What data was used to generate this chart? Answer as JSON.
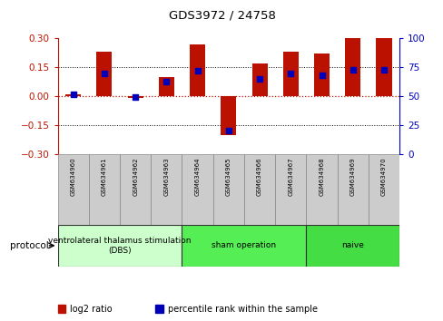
{
  "title": "GDS3972 / 24758",
  "samples": [
    "GSM634960",
    "GSM634961",
    "GSM634962",
    "GSM634963",
    "GSM634964",
    "GSM634965",
    "GSM634966",
    "GSM634967",
    "GSM634968",
    "GSM634969",
    "GSM634970"
  ],
  "log2_ratio": [
    0.01,
    0.23,
    -0.01,
    0.1,
    0.27,
    -0.2,
    0.17,
    0.23,
    0.22,
    0.3,
    0.3
  ],
  "percentile_rank": [
    52,
    70,
    49,
    63,
    72,
    20,
    65,
    70,
    68,
    73,
    73
  ],
  "ylim_left": [
    -0.3,
    0.3
  ],
  "ylim_right": [
    0,
    100
  ],
  "yticks_left": [
    -0.3,
    -0.15,
    0,
    0.15,
    0.3
  ],
  "yticks_right": [
    0,
    25,
    50,
    75,
    100
  ],
  "bar_color_red": "#bb1100",
  "bar_color_blue": "#0000bb",
  "grid_color": "#000000",
  "background_color": "#ffffff",
  "protocol_groups": [
    {
      "label": "ventrolateral thalamus stimulation\n(DBS)",
      "start": 0,
      "end": 3,
      "color": "#ccffcc"
    },
    {
      "label": "sham operation",
      "start": 4,
      "end": 7,
      "color": "#55ee55"
    },
    {
      "label": "naive",
      "start": 8,
      "end": 10,
      "color": "#44dd44"
    }
  ],
  "legend_items": [
    "log2 ratio",
    "percentile rank within the sample"
  ],
  "xlabel_protocol": "protocol",
  "bar_width": 0.5
}
